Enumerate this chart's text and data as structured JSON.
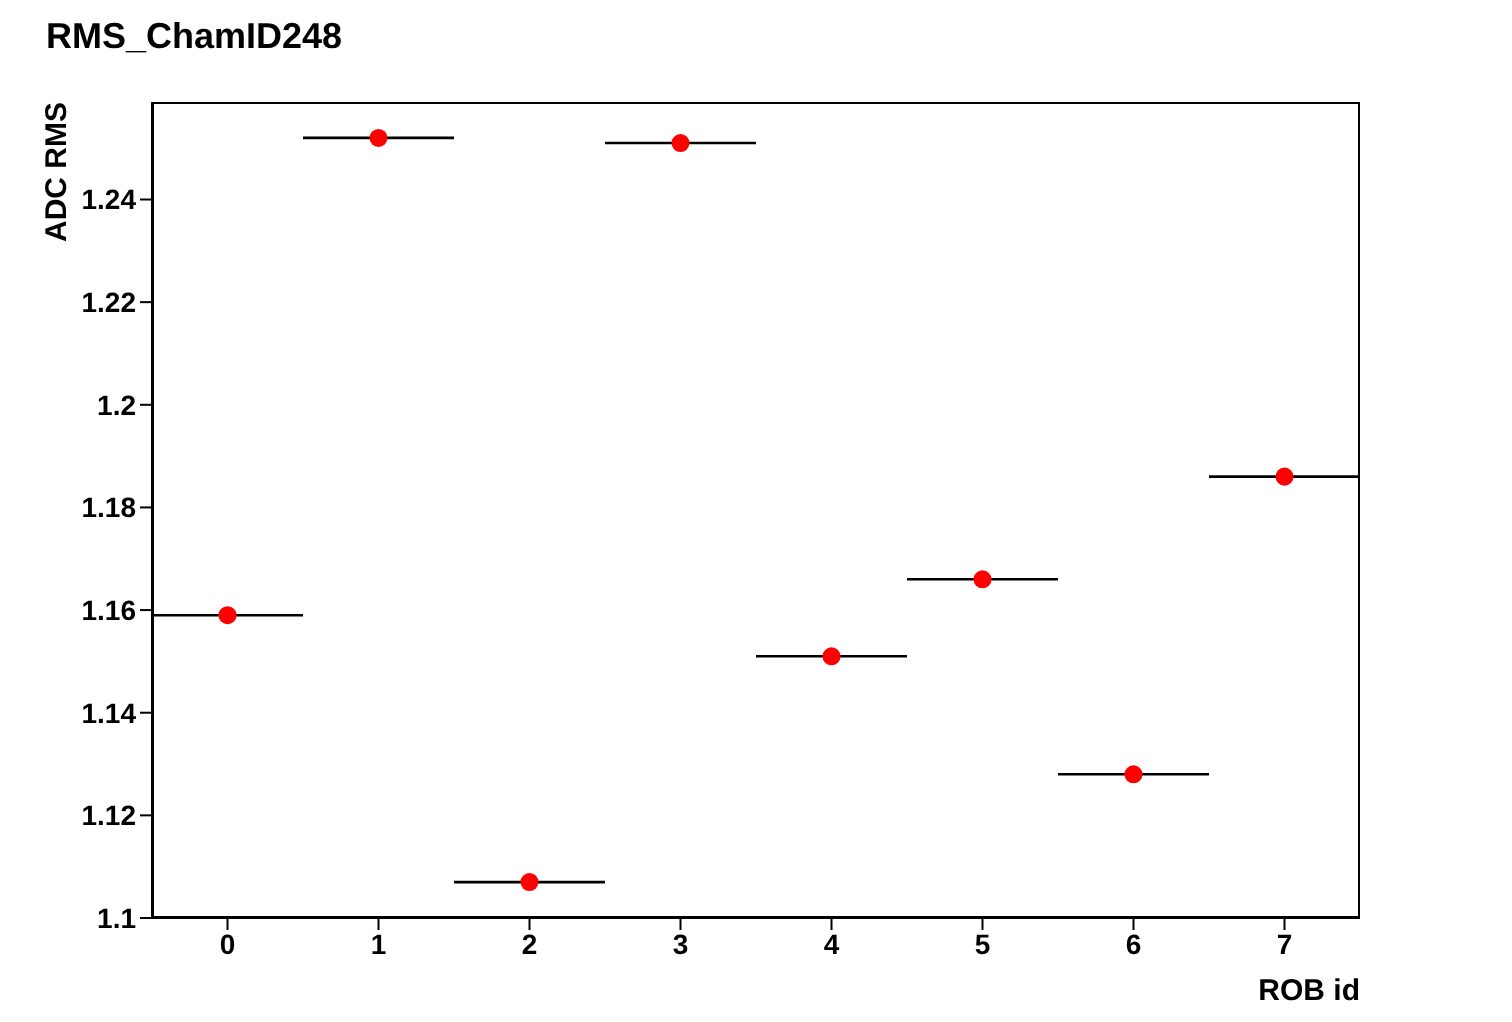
{
  "chart_data": {
    "type": "scatter",
    "title": "RMS_ChamID248",
    "xlabel": "ROB id",
    "ylabel": "ADC RMS",
    "x": [
      0,
      1,
      2,
      3,
      4,
      5,
      6,
      7
    ],
    "values": [
      1.159,
      1.252,
      1.107,
      1.251,
      1.151,
      1.166,
      1.128,
      1.186
    ],
    "xerrors": [
      0.5,
      0.5,
      0.5,
      0.5,
      0.5,
      0.5,
      0.5,
      0.5
    ],
    "color": "#ff0000",
    "marker": "circle",
    "xlim": [
      -0.5,
      7.5
    ],
    "xticks": [
      0,
      1,
      2,
      3,
      4,
      5,
      6,
      7
    ],
    "ylim": [
      1.1,
      1.259
    ],
    "yticks": [
      1.1,
      1.12,
      1.14,
      1.16,
      1.18,
      1.2,
      1.22,
      1.24
    ],
    "grid": false,
    "legend": false
  }
}
